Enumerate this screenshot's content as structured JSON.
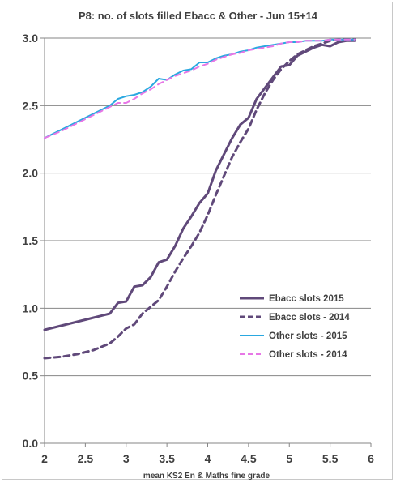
{
  "chart_data": {
    "type": "line",
    "title": "P8: no. of slots filled Ebacc & Other - Jun 15+14",
    "xlabel": "mean KS2 En & Maths fine grade",
    "ylabel": "",
    "xlim": [
      2,
      6
    ],
    "ylim": [
      0,
      3
    ],
    "xticks": [
      "2",
      "2.5",
      "3",
      "3.5",
      "4",
      "4.5",
      "5",
      "5.5",
      "6"
    ],
    "yticks": [
      "0.0",
      "0.5",
      "1.0",
      "1.5",
      "2.0",
      "2.5",
      "3.0"
    ],
    "grid": "horizontal",
    "legend_position": "bottom-right",
    "series": [
      {
        "name": "Ebacc slots 2015",
        "color": "#60497a",
        "style": "solid",
        "x": [
          2.0,
          2.2,
          2.4,
          2.6,
          2.8,
          2.9,
          3.0,
          3.1,
          3.2,
          3.3,
          3.4,
          3.5,
          3.6,
          3.7,
          3.8,
          3.9,
          4.0,
          4.1,
          4.2,
          4.3,
          4.4,
          4.5,
          4.6,
          4.7,
          4.8,
          4.9,
          5.0,
          5.1,
          5.2,
          5.3,
          5.4,
          5.5,
          5.6,
          5.7,
          5.8
        ],
        "y": [
          0.84,
          0.87,
          0.9,
          0.93,
          0.96,
          1.04,
          1.05,
          1.16,
          1.17,
          1.23,
          1.34,
          1.36,
          1.46,
          1.59,
          1.68,
          1.78,
          1.85,
          2.02,
          2.14,
          2.26,
          2.36,
          2.41,
          2.55,
          2.63,
          2.71,
          2.79,
          2.8,
          2.87,
          2.9,
          2.93,
          2.95,
          2.94,
          2.97,
          2.98,
          2.98
        ]
      },
      {
        "name": "Ebacc slots - 2014",
        "color": "#60497a",
        "style": "dashed",
        "x": [
          2.0,
          2.2,
          2.4,
          2.6,
          2.8,
          2.9,
          3.0,
          3.1,
          3.2,
          3.3,
          3.4,
          3.5,
          3.6,
          3.7,
          3.8,
          3.9,
          4.0,
          4.1,
          4.2,
          4.3,
          4.4,
          4.5,
          4.6,
          4.7,
          4.8,
          4.9,
          5.0,
          5.1,
          5.2,
          5.3,
          5.4,
          5.5,
          5.6,
          5.7,
          5.8
        ],
        "y": [
          0.63,
          0.64,
          0.66,
          0.69,
          0.74,
          0.79,
          0.85,
          0.88,
          0.96,
          1.01,
          1.06,
          1.16,
          1.27,
          1.37,
          1.46,
          1.56,
          1.69,
          1.84,
          1.98,
          2.12,
          2.23,
          2.33,
          2.47,
          2.59,
          2.69,
          2.77,
          2.83,
          2.88,
          2.91,
          2.94,
          2.96,
          2.98,
          2.99,
          2.99,
          2.99
        ]
      },
      {
        "name": "Other slots - 2015",
        "color": "#2aa8e0",
        "style": "solid",
        "x": [
          2.0,
          2.2,
          2.4,
          2.6,
          2.8,
          2.9,
          3.0,
          3.1,
          3.2,
          3.3,
          3.4,
          3.5,
          3.6,
          3.7,
          3.8,
          3.9,
          4.0,
          4.1,
          4.2,
          4.3,
          4.4,
          4.5,
          4.6,
          4.7,
          4.8,
          4.9,
          5.0,
          5.1,
          5.2,
          5.3,
          5.4,
          5.5,
          5.6,
          5.7,
          5.8
        ],
        "y": [
          2.26,
          2.32,
          2.38,
          2.44,
          2.5,
          2.55,
          2.57,
          2.58,
          2.6,
          2.64,
          2.7,
          2.69,
          2.73,
          2.76,
          2.77,
          2.82,
          2.82,
          2.85,
          2.87,
          2.88,
          2.9,
          2.91,
          2.93,
          2.94,
          2.95,
          2.96,
          2.97,
          2.97,
          2.98,
          2.98,
          2.98,
          2.99,
          2.99,
          2.99,
          2.99
        ]
      },
      {
        "name": "Other slots - 2014",
        "color": "#e777e6",
        "style": "dashed",
        "x": [
          2.0,
          2.2,
          2.4,
          2.6,
          2.8,
          2.9,
          3.0,
          3.1,
          3.2,
          3.3,
          3.4,
          3.5,
          3.6,
          3.7,
          3.8,
          3.9,
          4.0,
          4.1,
          4.2,
          4.3,
          4.4,
          4.5,
          4.6,
          4.7,
          4.8,
          4.9,
          5.0,
          5.1,
          5.2,
          5.3,
          5.4,
          5.5,
          5.6,
          5.7,
          5.8
        ],
        "y": [
          2.26,
          2.31,
          2.37,
          2.43,
          2.49,
          2.52,
          2.52,
          2.55,
          2.59,
          2.62,
          2.66,
          2.69,
          2.72,
          2.74,
          2.76,
          2.79,
          2.81,
          2.84,
          2.86,
          2.88,
          2.89,
          2.91,
          2.92,
          2.93,
          2.94,
          2.96,
          2.97,
          2.97,
          2.98,
          2.98,
          2.98,
          2.99,
          2.99,
          2.99,
          2.99
        ]
      }
    ]
  }
}
